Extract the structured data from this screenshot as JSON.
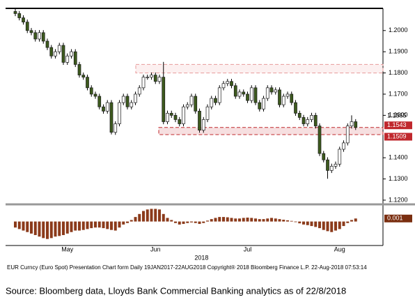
{
  "chart_data": [
    {
      "type": "candlestick",
      "categories": [
        null,
        null,
        null,
        null,
        null,
        null,
        null,
        null,
        null,
        null,
        null,
        null,
        null,
        "May",
        null,
        null,
        null,
        null,
        null,
        null,
        null,
        null,
        null,
        null,
        null,
        null,
        null,
        null,
        null,
        null,
        null,
        null,
        null,
        null,
        null,
        "Jun",
        null,
        null,
        null,
        null,
        null,
        null,
        null,
        null,
        null,
        null,
        null,
        null,
        null,
        null,
        null,
        null,
        null,
        null,
        null,
        null,
        null,
        null,
        "Jul",
        null,
        null,
        null,
        null,
        null,
        null,
        null,
        null,
        null,
        null,
        null,
        null,
        null,
        null,
        null,
        null,
        null,
        null,
        null,
        null,
        null,
        null,
        "Aug",
        null,
        null,
        null,
        null
      ],
      "year_label": "2018",
      "open": [
        1.209,
        1.208,
        1.206,
        1.204,
        1.2,
        1.199,
        1.196,
        1.199,
        1.195,
        1.192,
        1.188,
        1.19,
        1.193,
        1.185,
        1.188,
        1.19,
        1.184,
        1.179,
        1.178,
        1.173,
        1.17,
        1.169,
        1.164,
        1.162,
        1.166,
        1.152,
        1.156,
        1.166,
        1.169,
        1.164,
        1.166,
        1.17,
        1.173,
        1.178,
        1.178,
        1.179,
        1.176,
        1.178,
        1.157,
        1.161,
        1.16,
        1.158,
        1.156,
        1.164,
        1.165,
        1.169,
        1.162,
        1.153,
        1.158,
        1.164,
        1.168,
        1.166,
        1.173,
        1.175,
        1.176,
        1.174,
        1.169,
        1.171,
        1.17,
        1.167,
        1.173,
        1.166,
        1.163,
        1.168,
        1.173,
        1.171,
        1.172,
        1.165,
        1.169,
        1.17,
        1.166,
        1.161,
        1.159,
        1.156,
        1.158,
        1.16,
        1.155,
        1.142,
        1.139,
        1.134,
        1.136,
        1.137,
        1.144,
        1.147,
        1.155,
        1.157
      ],
      "high": [
        1.2102,
        1.2092,
        1.2072,
        1.2052,
        1.2012,
        1.2002,
        1.2002,
        1.2002,
        1.1962,
        1.1932,
        1.1912,
        1.1942,
        1.1942,
        1.1892,
        1.1912,
        1.1912,
        1.1852,
        1.1802,
        1.1792,
        1.1742,
        1.1712,
        1.1702,
        1.1652,
        1.1672,
        1.1672,
        1.1572,
        1.1672,
        1.1702,
        1.1702,
        1.1672,
        1.1712,
        1.1742,
        1.1792,
        1.1792,
        1.1802,
        1.1802,
        1.1792,
        1.1852,
        1.1622,
        1.1622,
        1.1612,
        1.1592,
        1.1652,
        1.1662,
        1.1702,
        1.1702,
        1.1632,
        1.1592,
        1.1652,
        1.1692,
        1.1692,
        1.1742,
        1.1762,
        1.1772,
        1.1772,
        1.1752,
        1.1722,
        1.1722,
        1.1712,
        1.1742,
        1.1742,
        1.1672,
        1.1692,
        1.1742,
        1.1742,
        1.1732,
        1.1732,
        1.1702,
        1.1712,
        1.1712,
        1.1672,
        1.1622,
        1.1602,
        1.1592,
        1.1612,
        1.1612,
        1.1562,
        1.1432,
        1.1402,
        1.1372,
        1.1382,
        1.1452,
        1.1482,
        1.1562,
        1.16,
        1.1582
      ],
      "low": [
        1.2068,
        1.2048,
        1.2028,
        1.1988,
        1.1978,
        1.1948,
        1.1948,
        1.1938,
        1.1908,
        1.1868,
        1.1868,
        1.1888,
        1.1838,
        1.1838,
        1.1868,
        1.1828,
        1.1778,
        1.1768,
        1.1718,
        1.1688,
        1.1678,
        1.1628,
        1.1608,
        1.1608,
        1.151,
        1.1508,
        1.1548,
        1.1648,
        1.1628,
        1.1628,
        1.1648,
        1.1688,
        1.1718,
        1.1768,
        1.1768,
        1.1748,
        1.1748,
        1.1558,
        1.1558,
        1.1588,
        1.1568,
        1.1548,
        1.1548,
        1.1628,
        1.1638,
        1.1608,
        1.1518,
        1.1518,
        1.1568,
        1.1628,
        1.1648,
        1.1648,
        1.1718,
        1.1738,
        1.1728,
        1.1678,
        1.1678,
        1.1688,
        1.1658,
        1.1658,
        1.1648,
        1.1618,
        1.1618,
        1.1668,
        1.1698,
        1.1698,
        1.1638,
        1.1638,
        1.1678,
        1.1648,
        1.1598,
        1.1578,
        1.1548,
        1.1548,
        1.1568,
        1.1538,
        1.1408,
        1.1378,
        1.1301,
        1.1328,
        1.1348,
        1.1358,
        1.1428,
        1.1458,
        1.1538,
        1.1531
      ],
      "close": [
        1.208,
        1.206,
        1.204,
        1.2,
        1.199,
        1.196,
        1.199,
        1.195,
        1.192,
        1.188,
        1.19,
        1.193,
        1.185,
        1.188,
        1.19,
        1.184,
        1.179,
        1.178,
        1.173,
        1.17,
        1.169,
        1.164,
        1.162,
        1.166,
        1.152,
        1.156,
        1.166,
        1.169,
        1.164,
        1.166,
        1.17,
        1.173,
        1.178,
        1.178,
        1.179,
        1.176,
        1.178,
        1.157,
        1.161,
        1.16,
        1.158,
        1.156,
        1.164,
        1.165,
        1.169,
        1.162,
        1.153,
        1.158,
        1.164,
        1.168,
        1.166,
        1.173,
        1.175,
        1.176,
        1.174,
        1.169,
        1.171,
        1.17,
        1.167,
        1.173,
        1.166,
        1.163,
        1.168,
        1.173,
        1.171,
        1.172,
        1.165,
        1.169,
        1.17,
        1.166,
        1.161,
        1.159,
        1.156,
        1.158,
        1.16,
        1.155,
        1.142,
        1.139,
        1.134,
        1.136,
        1.137,
        1.144,
        1.147,
        1.155,
        1.157,
        1.1543
      ],
      "up_color": "#ffffff",
      "down_color": "#3d5a1d",
      "ylim": [
        1.119,
        1.2098
      ],
      "yticks": [
        {
          "value": 1.12,
          "label": "1.1200"
        },
        {
          "value": 1.13,
          "label": "1.1300"
        },
        {
          "value": 1.14,
          "label": "1.1400"
        },
        {
          "value": 1.16,
          "label": "1.1600"
        },
        {
          "value": 1.17,
          "label": "1.1700"
        },
        {
          "value": 1.18,
          "label": "1.1800"
        },
        {
          "value": 1.19,
          "label": "1.1900"
        },
        {
          "value": 1.2,
          "label": "1.2000"
        }
      ],
      "zones": [
        {
          "low": 1.18,
          "high": 1.184,
          "color": "#e89a9a"
        },
        {
          "low": 1.1509,
          "high": 1.1543,
          "color": "#c0282d"
        }
      ],
      "price_labels": [
        {
          "value": 1.1565,
          "label": "1.1565"
        },
        {
          "value": 1.1543,
          "label": "1.1543"
        },
        {
          "value": 1.1509,
          "label": "1.1509"
        }
      ]
    },
    {
      "type": "bar",
      "values": [
        -0.002,
        -0.0025,
        -0.003,
        -0.0035,
        -0.004,
        -0.0045,
        -0.005,
        -0.0055,
        -0.0058,
        -0.0055,
        -0.005,
        -0.0048,
        -0.0045,
        -0.004,
        -0.0035,
        -0.003,
        -0.003,
        -0.0028,
        -0.0025,
        -0.0022,
        -0.002,
        -0.002,
        -0.0022,
        -0.0025,
        -0.0028,
        -0.003,
        -0.002,
        -0.001,
        -0.0005,
        0.0005,
        0.0015,
        0.0025,
        0.0035,
        0.004,
        0.0042,
        0.0042,
        0.004,
        0.0025,
        0.0012,
        0.0005,
        -0.0005,
        -0.001,
        -0.0008,
        -0.0005,
        -0.0003,
        -0.0005,
        -0.0008,
        -0.0005,
        0.0003,
        0.0008,
        0.0012,
        0.0015,
        0.0015,
        0.0014,
        0.0012,
        0.001,
        0.001,
        0.0012,
        0.0013,
        0.0012,
        0.001,
        0.0008,
        0.0008,
        0.001,
        0.0012,
        0.001,
        0.0008,
        0.0006,
        0.0004,
        0.0002,
        -0.0002,
        -0.0006,
        -0.001,
        -0.0012,
        -0.0015,
        -0.0018,
        -0.0022,
        -0.0028,
        -0.0032,
        -0.0035,
        -0.003,
        -0.0025,
        -0.0015,
        -0.0005,
        0.0005,
        0.001
      ],
      "color": "#8b3a1a",
      "ylim": [
        -0.0075,
        0.005
      ],
      "price_labels": [
        {
          "value": 0.001,
          "label": "0.001"
        }
      ]
    }
  ],
  "footer": "EUR Curncy (Euro Spot) Presentation Chart form  Daily 19JAN2017-22AUG2018  Copyright® 2018 Bloomberg Finance L.P.  22-Aug-2018 07:53:14",
  "source": "Source: Bloomberg data, Lloyds Bank Commercial Banking analytics as of 22/8/2018"
}
